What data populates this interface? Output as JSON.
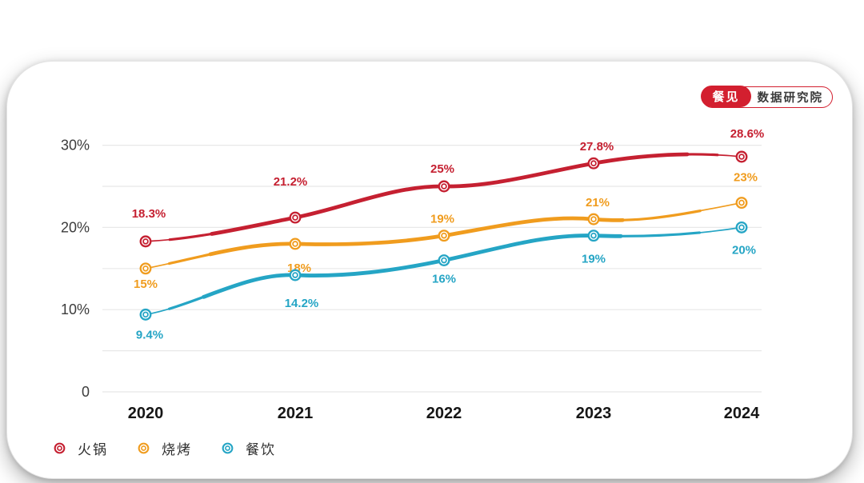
{
  "badge": {
    "logo": "餐见",
    "org": "数据研究院"
  },
  "chart_data": {
    "type": "line",
    "title": "",
    "x": [
      "2020",
      "2021",
      "2022",
      "2023",
      "2024"
    ],
    "xlabel": "",
    "ylabel": "",
    "ylim": [
      0,
      32
    ],
    "grid": true,
    "grid_step": 5,
    "yticks": [
      {
        "v": 0,
        "label": "0"
      },
      {
        "v": 10,
        "label": "10%"
      },
      {
        "v": 20,
        "label": "20%"
      },
      {
        "v": 30,
        "label": "30%"
      }
    ],
    "legend_position": "bottom-left",
    "series": [
      {
        "id": "hotpot",
        "name": "火锅",
        "color": "#c52031",
        "values": [
          18.3,
          21.2,
          25,
          27.8,
          28.6
        ],
        "labels": [
          "18.3%",
          "21.2%",
          "25%",
          "27.8%",
          "28.6%"
        ],
        "label_offsets": [
          [
            4,
            -30
          ],
          [
            -6,
            -40
          ],
          [
            -2,
            -17
          ],
          [
            4,
            -16
          ],
          [
            7,
            -24
          ]
        ],
        "tangents": [
          0.8,
          3.6,
          -0.3,
          3.2,
          -1.8
        ]
      },
      {
        "id": "bbq",
        "name": "烧烤",
        "color": "#f09c1e",
        "values": [
          15,
          18,
          19,
          21,
          23
        ],
        "labels": [
          "15%",
          "18%",
          "19%",
          "21%",
          "23%"
        ],
        "label_offsets": [
          [
            0,
            24
          ],
          [
            5,
            35
          ],
          [
            -2,
            -16
          ],
          [
            5,
            -16
          ],
          [
            5,
            -27
          ]
        ],
        "tangents": [
          3.5,
          -0.5,
          3.0,
          -1.6,
          3.5
        ]
      },
      {
        "id": "catering",
        "name": "餐饮",
        "color": "#25a5c5",
        "values": [
          9.4,
          14.2,
          16,
          19,
          20
        ],
        "labels": [
          "9.4%",
          "14.2%",
          "16%",
          "19%",
          "20%"
        ],
        "label_offsets": [
          [
            5,
            30
          ],
          [
            8,
            40
          ],
          [
            0,
            28
          ],
          [
            0,
            34
          ],
          [
            3,
            33
          ]
        ],
        "tangents": [
          3.2,
          -0.8,
          3.8,
          -0.6,
          2.8
        ]
      }
    ]
  }
}
